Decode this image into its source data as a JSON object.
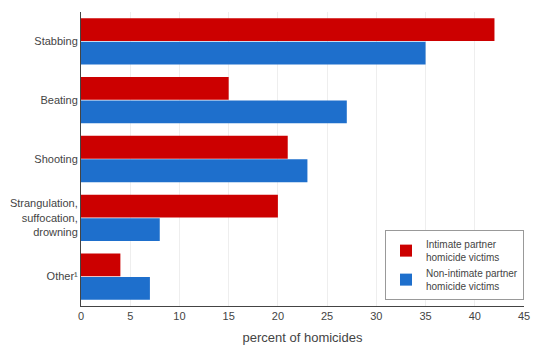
{
  "chart_data": {
    "type": "bar",
    "orientation": "horizontal",
    "categories": [
      "Stabbing",
      "Beating",
      "Shooting",
      "Strangulation,\nsuffocation,\ndrowning",
      "Other¹"
    ],
    "series": [
      {
        "name": "Intimate partner\nhomicide victims",
        "color": "#cc0000",
        "values": [
          42,
          15,
          21,
          20,
          4
        ]
      },
      {
        "name": "Non-intimate partner\nhomicide victims",
        "color": "#1e6fcc",
        "values": [
          35,
          27,
          23,
          8,
          7
        ]
      }
    ],
    "xlabel": "percent of homicides",
    "xlim": [
      0,
      45
    ],
    "xticks": [
      0,
      5,
      10,
      15,
      20,
      25,
      30,
      35,
      40,
      45
    ],
    "grid": true,
    "legend": "lower right"
  }
}
